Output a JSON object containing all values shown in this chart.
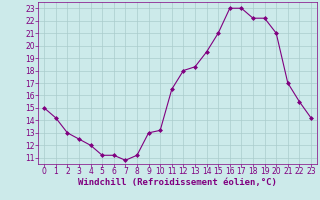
{
  "x": [
    0,
    1,
    2,
    3,
    4,
    5,
    6,
    7,
    8,
    9,
    10,
    11,
    12,
    13,
    14,
    15,
    16,
    17,
    18,
    19,
    20,
    21,
    22,
    23
  ],
  "y": [
    15,
    14.2,
    13,
    12.5,
    12,
    11.2,
    11.2,
    10.8,
    11.2,
    13,
    13.2,
    16.5,
    18,
    18.3,
    19.5,
    21,
    23,
    23,
    22.2,
    22.2,
    21,
    17,
    15.5,
    14.2
  ],
  "line_color": "#800080",
  "marker": "D",
  "marker_size": 2,
  "bg_color": "#cceaea",
  "grid_color": "#aacccc",
  "xlabel": "Windchill (Refroidissement éolien,°C)",
  "xlabel_color": "#800080",
  "tick_color": "#800080",
  "ylim": [
    10.5,
    23.5
  ],
  "xlim": [
    -0.5,
    23.5
  ],
  "yticks": [
    11,
    12,
    13,
    14,
    15,
    16,
    17,
    18,
    19,
    20,
    21,
    22,
    23
  ],
  "xticks": [
    0,
    1,
    2,
    3,
    4,
    5,
    6,
    7,
    8,
    9,
    10,
    11,
    12,
    13,
    14,
    15,
    16,
    17,
    18,
    19,
    20,
    21,
    22,
    23
  ],
  "tick_fontsize": 5.5,
  "xlabel_fontsize": 6.5,
  "figwidth": 3.2,
  "figheight": 2.0,
  "dpi": 100
}
